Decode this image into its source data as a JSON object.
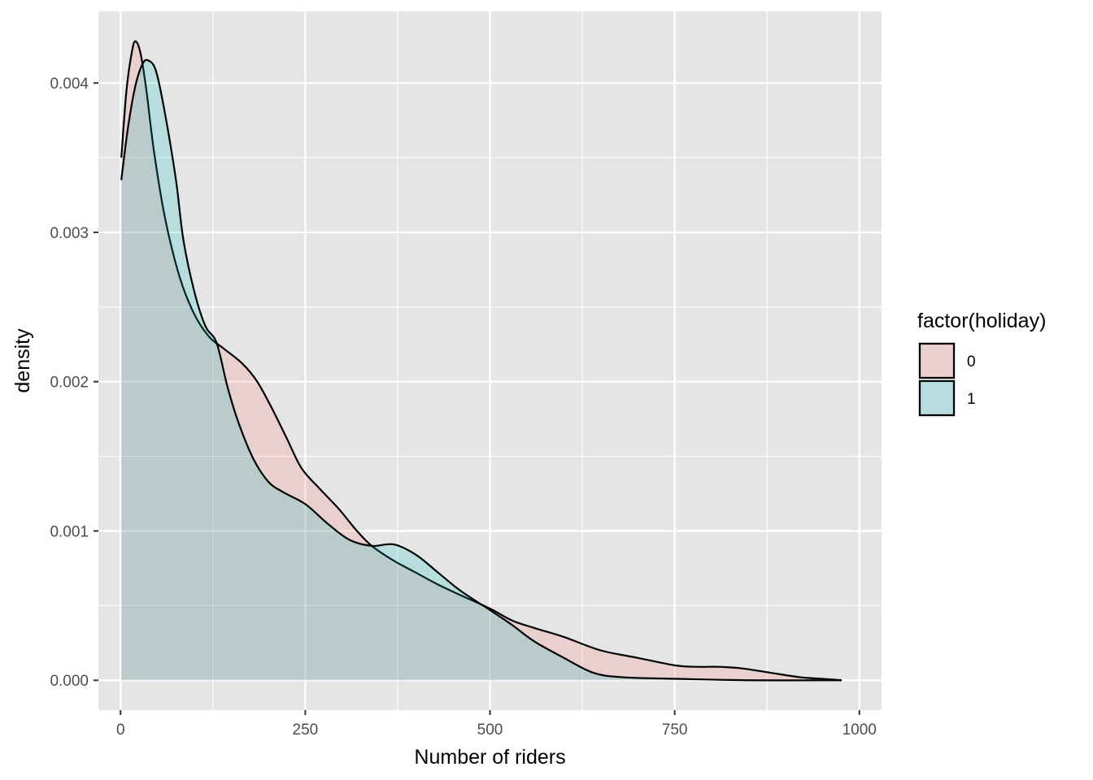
{
  "chart_data": {
    "type": "area",
    "title": "",
    "xlabel": "Number of riders",
    "ylabel": "density",
    "xlim": [
      -30,
      1030
    ],
    "ylim": [
      -0.0002,
      0.00448
    ],
    "x_ticks": [
      0,
      250,
      500,
      750,
      1000
    ],
    "x_tick_labels": [
      "0",
      "250",
      "500",
      "750",
      "1000"
    ],
    "y_ticks": [
      0.0,
      0.001,
      0.002,
      0.003,
      0.004
    ],
    "y_tick_labels": [
      "0.000",
      "0.001",
      "0.002",
      "0.003",
      "0.004"
    ],
    "grid": true,
    "legend": {
      "title": "factor(holiday)",
      "position": "right"
    },
    "colors": {
      "panel": "#e5e5e5",
      "grid": "#ffffff",
      "outline": "#000000",
      "tick_mark": "#333333"
    },
    "series": [
      {
        "name": "0",
        "fill": "#f8766d",
        "opacity": 0.2,
        "points": [
          [
            1,
            0.0035
          ],
          [
            8,
            0.00395
          ],
          [
            15,
            0.0042
          ],
          [
            20,
            0.00428
          ],
          [
            27,
            0.0042
          ],
          [
            35,
            0.00395
          ],
          [
            45,
            0.00355
          ],
          [
            60,
            0.0031
          ],
          [
            80,
            0.0027
          ],
          [
            100,
            0.00245
          ],
          [
            120,
            0.0023
          ],
          [
            140,
            0.00222
          ],
          [
            165,
            0.00212
          ],
          [
            185,
            0.002
          ],
          [
            205,
            0.00182
          ],
          [
            225,
            0.00162
          ],
          [
            245,
            0.00142
          ],
          [
            270,
            0.00128
          ],
          [
            295,
            0.00115
          ],
          [
            320,
            0.001
          ],
          [
            340,
            0.0009
          ],
          [
            370,
            0.0008
          ],
          [
            400,
            0.00072
          ],
          [
            430,
            0.00064
          ],
          [
            460,
            0.00057
          ],
          [
            500,
            0.00048
          ],
          [
            530,
            0.0004
          ],
          [
            560,
            0.00035
          ],
          [
            600,
            0.00029
          ],
          [
            650,
            0.0002
          ],
          [
            700,
            0.00015
          ],
          [
            750,
            0.0001
          ],
          [
            780,
            9e-05
          ],
          [
            810,
            9e-05
          ],
          [
            840,
            8e-05
          ],
          [
            880,
            5e-05
          ],
          [
            920,
            2e-05
          ],
          [
            950,
            1e-05
          ],
          [
            976,
            0.0
          ]
        ]
      },
      {
        "name": "1",
        "fill": "#00bfc4",
        "opacity": 0.2,
        "points": [
          [
            1,
            0.00335
          ],
          [
            10,
            0.0037
          ],
          [
            20,
            0.00398
          ],
          [
            30,
            0.00413
          ],
          [
            38,
            0.00415
          ],
          [
            48,
            0.00408
          ],
          [
            60,
            0.0038
          ],
          [
            75,
            0.00335
          ],
          [
            85,
            0.00295
          ],
          [
            100,
            0.0026
          ],
          [
            115,
            0.00237
          ],
          [
            130,
            0.00226
          ],
          [
            145,
            0.00196
          ],
          [
            160,
            0.00172
          ],
          [
            180,
            0.00148
          ],
          [
            200,
            0.00133
          ],
          [
            220,
            0.00126
          ],
          [
            250,
            0.00118
          ],
          [
            280,
            0.00105
          ],
          [
            310,
            0.00094
          ],
          [
            340,
            0.0009
          ],
          [
            370,
            0.00091
          ],
          [
            400,
            0.00084
          ],
          [
            430,
            0.00072
          ],
          [
            460,
            0.0006
          ],
          [
            500,
            0.00047
          ],
          [
            530,
            0.00037
          ],
          [
            560,
            0.00026
          ],
          [
            600,
            0.00015
          ],
          [
            640,
            5e-05
          ],
          [
            680,
            2e-05
          ],
          [
            750,
            1e-05
          ],
          [
            850,
            0.0
          ],
          [
            976,
            0.0
          ]
        ]
      }
    ]
  }
}
